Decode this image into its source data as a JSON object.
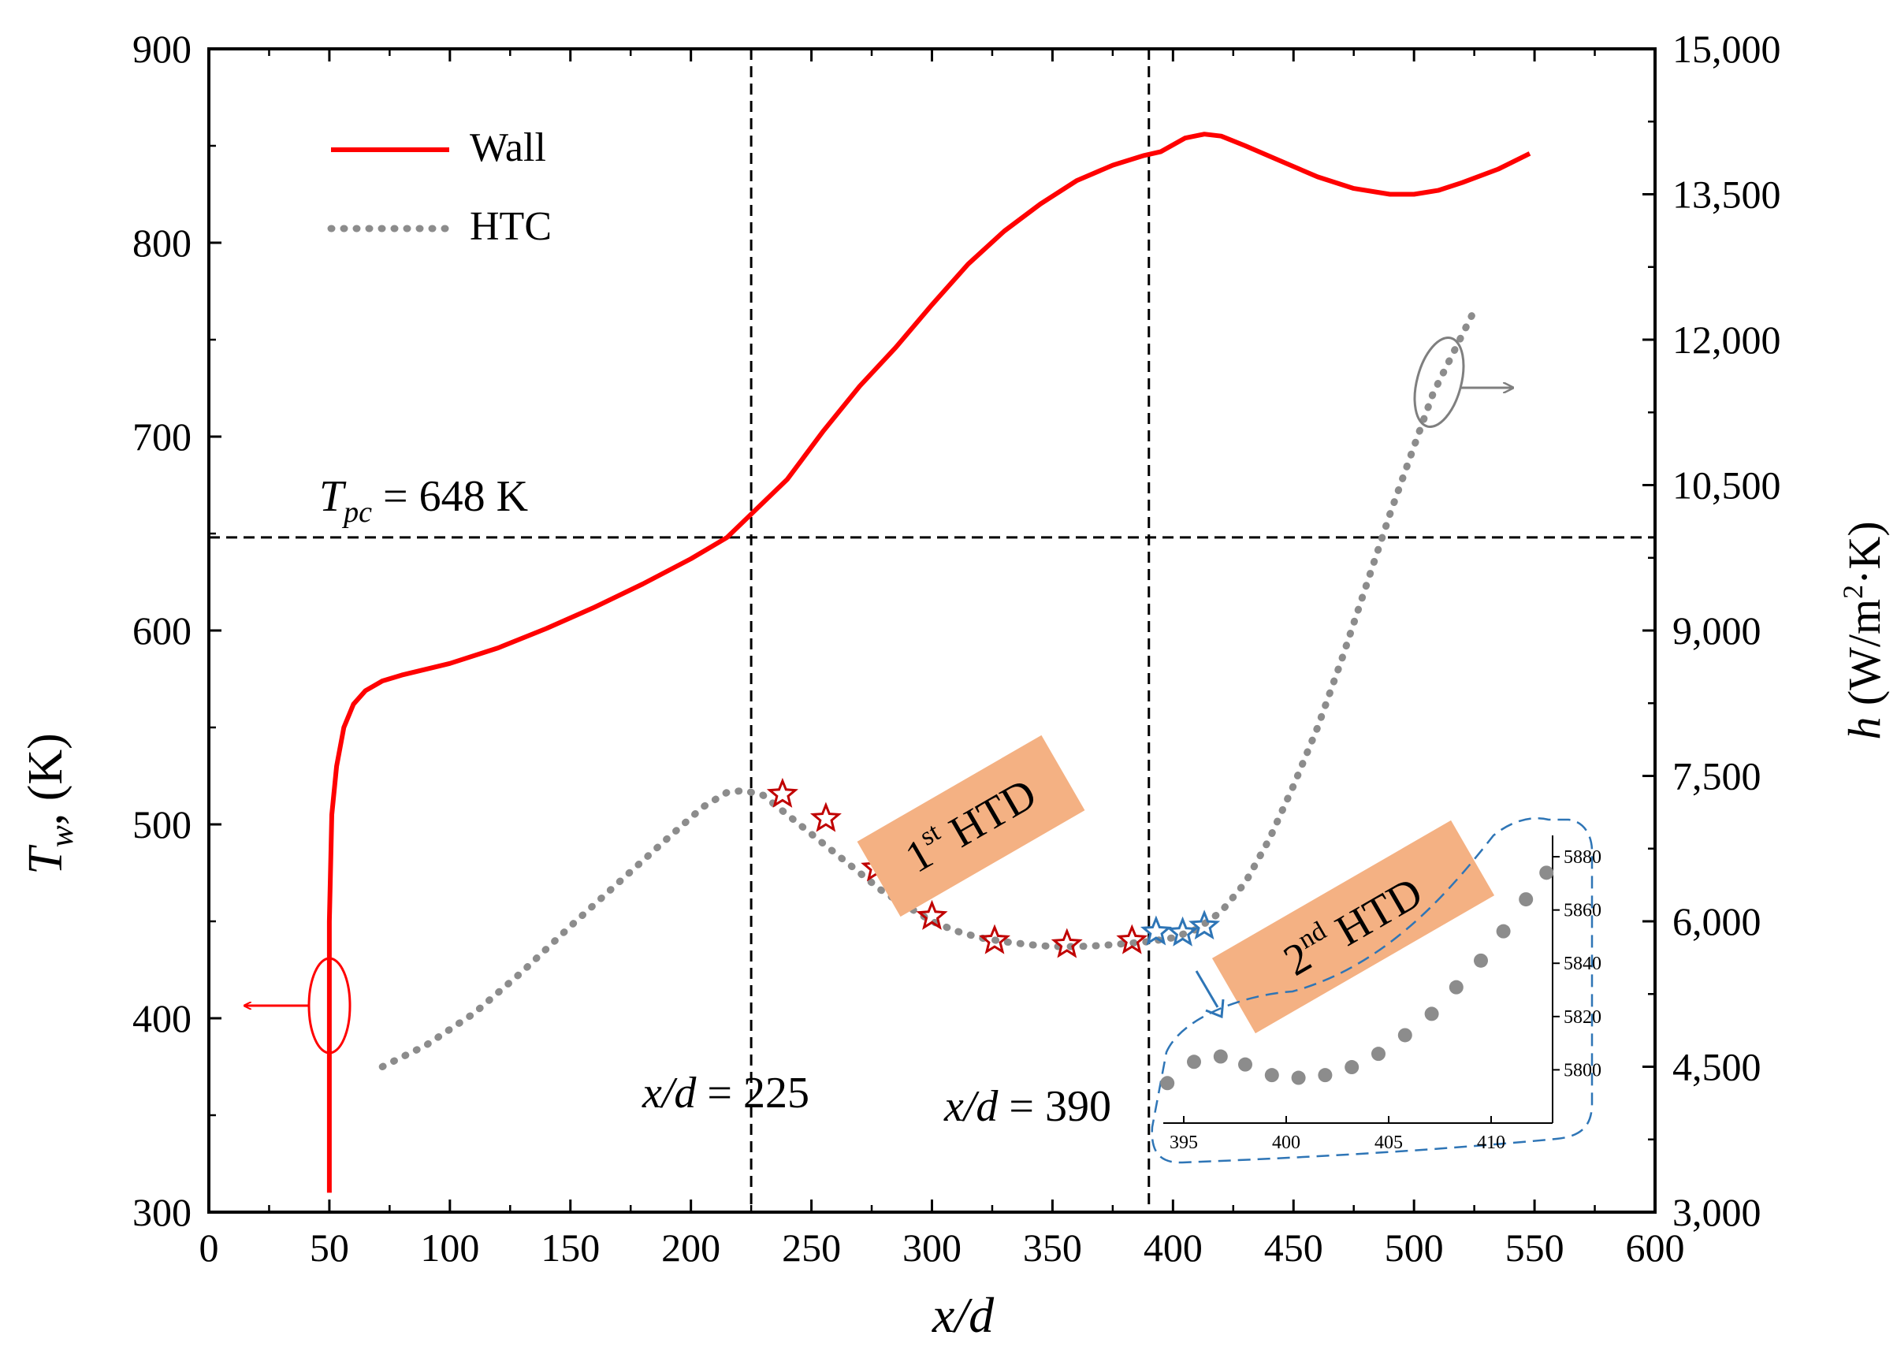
{
  "chart_data": {
    "type": "line",
    "x": {
      "label": "x/d",
      "range": [
        0,
        600
      ],
      "ticks": [
        "0",
        "50",
        "100",
        "150",
        "200",
        "250",
        "300",
        "350",
        "400",
        "450",
        "500",
        "550",
        "600"
      ]
    },
    "y_left": {
      "label_symbol": "T",
      "label_sub": "w",
      "label_rest": ", (K)",
      "range": [
        300,
        900
      ],
      "ticks": [
        "300",
        "400",
        "500",
        "600",
        "700",
        "800",
        "900"
      ]
    },
    "y_right": {
      "label_pre": "h",
      "label_mid": " (W/m",
      "label_sup": "2",
      "label_post": "·K)",
      "range": [
        3000,
        15000
      ],
      "ticks": [
        "3,000",
        "4,500",
        "6,000",
        "7,500",
        "9,000",
        "10,500",
        "12,000",
        "13,500",
        "15,000"
      ]
    },
    "legend": [
      {
        "name": "Wall",
        "style": "solid",
        "color": "#ff0000"
      },
      {
        "name": "HTC",
        "style": "dotted",
        "color": "#8c8c8c"
      }
    ],
    "series": [
      {
        "name": "Wall",
        "axis": "left",
        "points": [
          [
            50,
            310
          ],
          [
            50,
            380
          ],
          [
            50,
            450
          ],
          [
            51,
            505
          ],
          [
            53,
            530
          ],
          [
            56,
            550
          ],
          [
            60,
            562
          ],
          [
            65,
            569
          ],
          [
            72,
            574
          ],
          [
            80,
            577
          ],
          [
            90,
            580
          ],
          [
            100,
            583
          ],
          [
            120,
            591
          ],
          [
            140,
            601
          ],
          [
            160,
            612
          ],
          [
            180,
            624
          ],
          [
            200,
            637
          ],
          [
            215,
            648
          ],
          [
            225,
            660
          ],
          [
            240,
            678
          ],
          [
            255,
            703
          ],
          [
            270,
            726
          ],
          [
            285,
            746
          ],
          [
            300,
            768
          ],
          [
            315,
            789
          ],
          [
            330,
            806
          ],
          [
            345,
            820
          ],
          [
            360,
            832
          ],
          [
            375,
            840
          ],
          [
            388,
            845
          ],
          [
            395,
            847
          ],
          [
            405,
            854
          ],
          [
            413,
            856
          ],
          [
            420,
            855
          ],
          [
            430,
            850
          ],
          [
            445,
            842
          ],
          [
            460,
            834
          ],
          [
            475,
            828
          ],
          [
            490,
            825
          ],
          [
            500,
            825
          ],
          [
            510,
            827
          ],
          [
            520,
            831
          ],
          [
            535,
            838
          ],
          [
            548,
            846
          ]
        ]
      },
      {
        "name": "HTC",
        "axis": "right",
        "points": [
          [
            72,
            4500
          ],
          [
            90,
            4720
          ],
          [
            110,
            5050
          ],
          [
            130,
            5480
          ],
          [
            150,
            5950
          ],
          [
            170,
            6400
          ],
          [
            190,
            6850
          ],
          [
            205,
            7180
          ],
          [
            215,
            7330
          ],
          [
            222,
            7350
          ],
          [
            230,
            7300
          ],
          [
            240,
            7100
          ],
          [
            250,
            6900
          ],
          [
            260,
            6700
          ],
          [
            270,
            6500
          ],
          [
            280,
            6300
          ],
          [
            290,
            6150
          ],
          [
            300,
            6000
          ],
          [
            310,
            5900
          ],
          [
            320,
            5830
          ],
          [
            330,
            5790
          ],
          [
            340,
            5760
          ],
          [
            350,
            5740
          ],
          [
            360,
            5740
          ],
          [
            370,
            5750
          ],
          [
            380,
            5770
          ],
          [
            390,
            5790
          ],
          [
            400,
            5830
          ],
          [
            410,
            5920
          ],
          [
            420,
            6100
          ],
          [
            430,
            6400
          ],
          [
            440,
            6850
          ],
          [
            450,
            7400
          ],
          [
            460,
            8000
          ],
          [
            470,
            8700
          ],
          [
            480,
            9450
          ],
          [
            490,
            10200
          ],
          [
            500,
            10900
          ],
          [
            508,
            11450
          ],
          [
            515,
            11800
          ],
          [
            525,
            12300
          ]
        ]
      }
    ],
    "markers_1st": [
      [
        238,
        7310
      ],
      [
        256,
        7060
      ],
      [
        277,
        6550
      ],
      [
        300,
        6050
      ],
      [
        326,
        5800
      ],
      [
        356,
        5760
      ],
      [
        383,
        5800
      ]
    ],
    "markers_2nd": [
      [
        393,
        5890
      ],
      [
        404,
        5880
      ],
      [
        413,
        5950
      ]
    ],
    "reference_lines": {
      "Tpc_label_T": "T",
      "Tpc_label_sub": "pc",
      "Tpc_label_rest": " = 648 K",
      "Tpc_value": 648,
      "x1_value": 225,
      "x1_label_var": "x/d",
      "x1_label_val": " = 225",
      "x2_value": 390,
      "x2_label_var": "x/d",
      "x2_label_val": " = 390"
    },
    "annotations": {
      "htd1_num": "1",
      "htd1_sup": "st",
      "htd1_rest": " HTD",
      "htd2_num": "2",
      "htd2_sup": "nd",
      "htd2_rest": " HTD",
      "box_color": "#f4b183"
    },
    "inset": {
      "x_range": [
        394,
        413
      ],
      "y_range": [
        5780,
        5888
      ],
      "x_ticks": [
        "395",
        "400",
        "405",
        "410"
      ],
      "y_ticks": [
        "5800",
        "5820",
        "5840",
        "5860",
        "5880"
      ],
      "points": [
        [
          394.2,
          5795
        ],
        [
          395.5,
          5803
        ],
        [
          396.8,
          5805
        ],
        [
          398,
          5802
        ],
        [
          399.3,
          5798
        ],
        [
          400.6,
          5797
        ],
        [
          401.9,
          5798
        ],
        [
          403.2,
          5801
        ],
        [
          404.5,
          5806
        ],
        [
          405.8,
          5813
        ],
        [
          407.1,
          5821
        ],
        [
          408.3,
          5831
        ],
        [
          409.5,
          5841
        ],
        [
          410.6,
          5852
        ],
        [
          411.7,
          5864
        ],
        [
          412.7,
          5874
        ]
      ]
    },
    "colors": {
      "wall": "#ff0000",
      "htc": "#8c8c8c",
      "star1": "#c00000",
      "star2": "#2e75b6",
      "inset_border": "#2e75b6"
    }
  }
}
